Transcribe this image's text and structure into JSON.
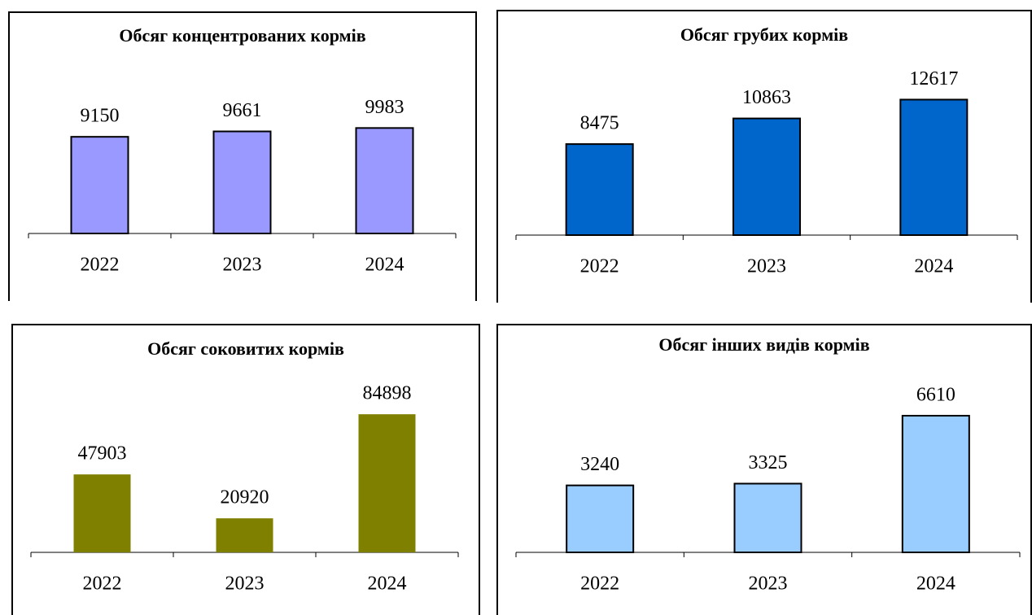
{
  "chart_data": [
    {
      "type": "bar",
      "title": "Обсяг концентрованих кормів",
      "categories": [
        "2022",
        "2023",
        "2024"
      ],
      "values": [
        9150,
        9661,
        9983
      ],
      "color": "#9999ff",
      "ylim": [
        0,
        15400
      ]
    },
    {
      "type": "bar",
      "title": "Обсяг грубих кормів",
      "categories": [
        "2022",
        "2023",
        "2024"
      ],
      "values": [
        8475,
        10863,
        12617
      ],
      "color": "#0066cc",
      "ylim": [
        0,
        15150
      ]
    },
    {
      "type": "bar",
      "title": "Обсяг соковитих кормів",
      "categories": [
        "2022",
        "2023",
        "2024"
      ],
      "values": [
        47903,
        20920,
        84898
      ],
      "color": "#808000",
      "ylim": [
        0,
        100000
      ]
    },
    {
      "type": "bar",
      "title": "Обсяг інших видів кормів",
      "categories": [
        "2022",
        "2023",
        "2024"
      ],
      "values": [
        3240,
        3325,
        6610
      ],
      "color": "#99ccff",
      "ylim": [
        0,
        7870
      ]
    }
  ]
}
